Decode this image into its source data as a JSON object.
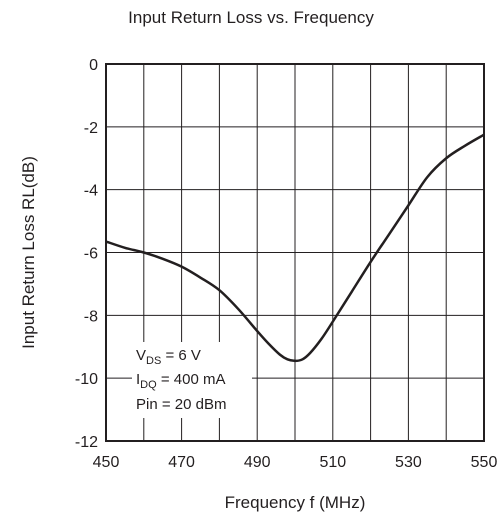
{
  "chart_data": {
    "type": "line",
    "title": "Input Return Loss vs. Frequency",
    "xlabel": "Frequency f (MHz)",
    "ylabel": "Input Return Loss  RL(dB)",
    "xlim": [
      450,
      550
    ],
    "ylim": [
      -12,
      0
    ],
    "xticks": [
      450,
      470,
      490,
      510,
      530,
      550
    ],
    "xtick_labels": [
      "450",
      "470",
      "490",
      "510",
      "530",
      "550"
    ],
    "yticks": [
      0,
      -2,
      -4,
      -6,
      -8,
      -10,
      -12
    ],
    "ytick_labels": [
      "0",
      "-2",
      "-4",
      "-6",
      "-8",
      "-10",
      "-12"
    ],
    "x_grid_step": 10,
    "y_grid_step": 2,
    "grid": true,
    "series": [
      {
        "x": [
          450,
          455,
          460,
          465,
          470,
          475,
          480,
          485,
          490,
          493,
          496,
          498,
          500,
          502,
          504,
          507,
          510,
          515,
          520,
          525,
          530,
          535,
          540,
          545,
          550
        ],
        "y": [
          -5.65,
          -5.85,
          -6.0,
          -6.2,
          -6.45,
          -6.8,
          -7.2,
          -7.8,
          -8.5,
          -8.9,
          -9.25,
          -9.4,
          -9.45,
          -9.4,
          -9.2,
          -8.75,
          -8.2,
          -7.25,
          -6.3,
          -5.4,
          -4.5,
          -3.6,
          -3.0,
          -2.6,
          -2.25
        ]
      }
    ],
    "annotation": {
      "line1_main": "V",
      "line1_sub": "DS",
      "line1_rest": " = 6 V",
      "line2_main": "I",
      "line2_sub": "DQ",
      "line2_rest": " = 400 mA",
      "line3": "Pin = 20 dBm"
    }
  }
}
